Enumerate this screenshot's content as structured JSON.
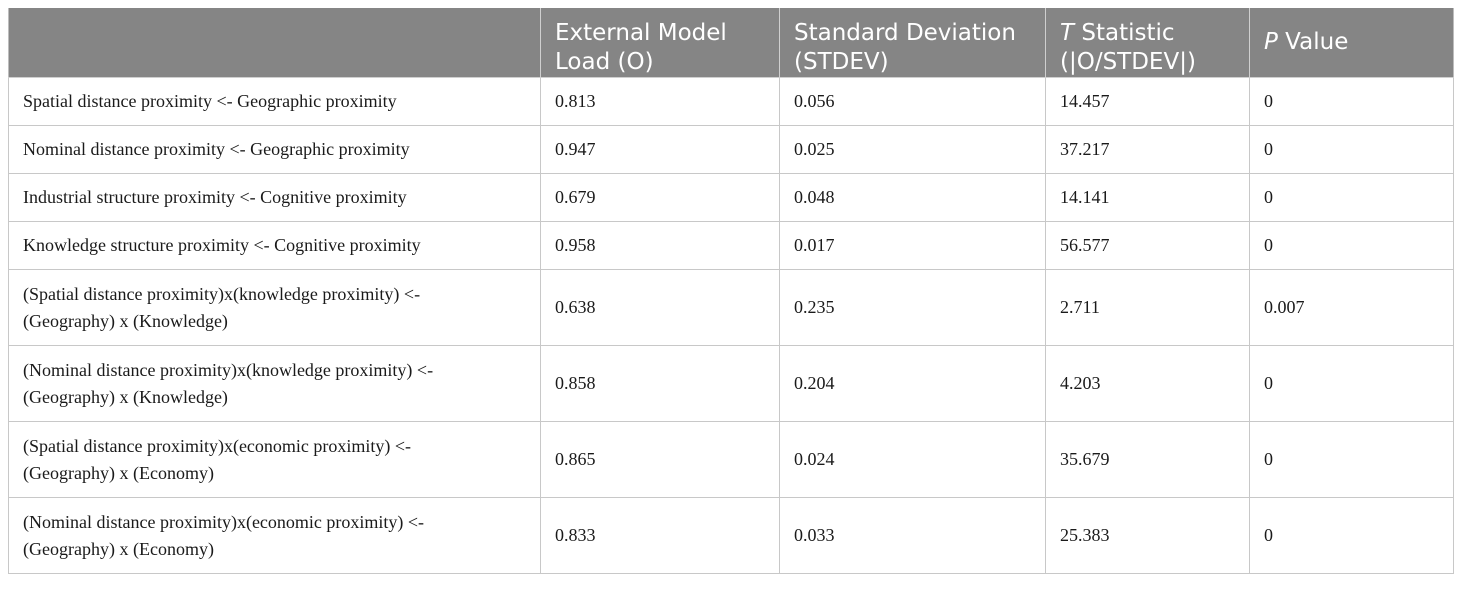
{
  "table": {
    "headers": [
      {
        "line1": "External Model",
        "line2": "Load (O)",
        "prefix": "",
        "rest": ""
      },
      {
        "line1": "Standard Deviation",
        "line2": "(STDEV)",
        "prefix": "",
        "rest": ""
      },
      {
        "line1": "",
        "line2": "(|O/STDEV|)",
        "prefix": "T",
        "rest": " Statistic"
      },
      {
        "line1": "",
        "line2": "",
        "prefix": "P",
        "rest": " Value"
      }
    ],
    "rows": [
      {
        "path1": "Spatial distance proximity <- Geographic proximity",
        "path2": "",
        "load": "0.813",
        "stdev": "0.056",
        "t": "14.457",
        "p": "0"
      },
      {
        "path1": "Nominal distance proximity <- Geographic proximity",
        "path2": "",
        "load": "0.947",
        "stdev": "0.025",
        "t": "37.217",
        "p": "0"
      },
      {
        "path1": "Industrial structure proximity <- Cognitive proximity",
        "path2": "",
        "load": "0.679",
        "stdev": "0.048",
        "t": "14.141",
        "p": "0"
      },
      {
        "path1": "Knowledge structure proximity <- Cognitive proximity",
        "path2": "",
        "load": "0.958",
        "stdev": "0.017",
        "t": "56.577",
        "p": "0"
      },
      {
        "path1": "(Spatial distance proximity)x(knowledge proximity) <-",
        "path2": "(Geography) x (Knowledge)",
        "load": "0.638",
        "stdev": "0.235",
        "t": "2.711",
        "p": "0.007"
      },
      {
        "path1": "(Nominal distance proximity)x(knowledge proximity) <-",
        "path2": "(Geography) x (Knowledge)",
        "load": "0.858",
        "stdev": "0.204",
        "t": "4.203",
        "p": "0"
      },
      {
        "path1": "(Spatial distance proximity)x(economic proximity) <-",
        "path2": "(Geography) x (Economy)",
        "load": "0.865",
        "stdev": "0.024",
        "t": "35.679",
        "p": "0"
      },
      {
        "path1": "(Nominal distance proximity)x(economic proximity) <-",
        "path2": "(Geography) x (Economy)",
        "load": "0.833",
        "stdev": "0.033",
        "t": "25.383",
        "p": "0"
      }
    ]
  }
}
